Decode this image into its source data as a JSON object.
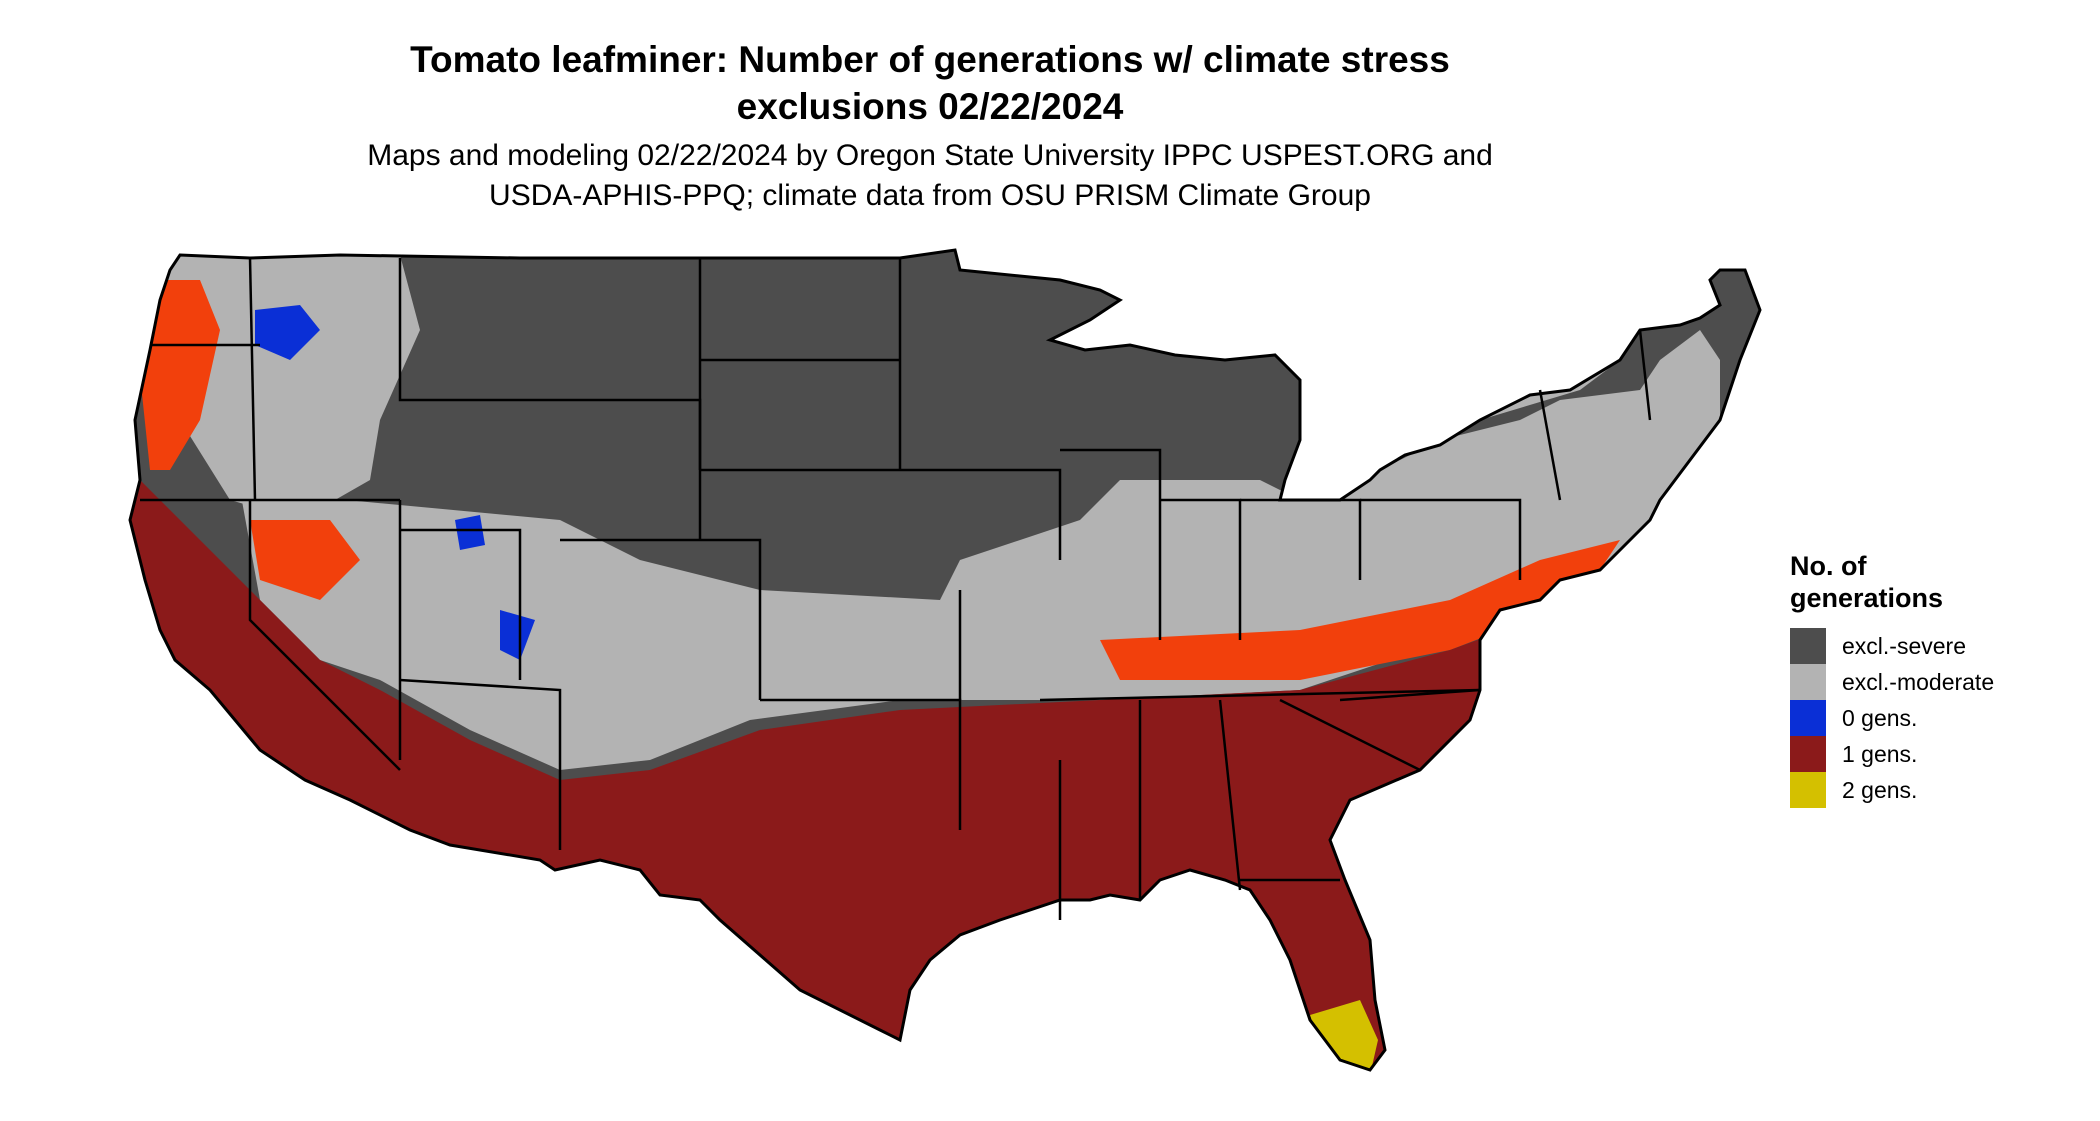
{
  "title": {
    "line1": "Tomato leafminer: Number of generations w/ climate stress",
    "line2": "exclusions 02/22/2024"
  },
  "subtitle": {
    "line1": "Maps and modeling 02/22/2024 by Oregon State University IPPC USPEST.ORG and",
    "line2": "USDA-APHIS-PPQ; climate data from OSU PRISM Climate Group"
  },
  "legend": {
    "title_line1": "No. of",
    "title_line2": "generations",
    "items": [
      {
        "label": "excl.-severe",
        "color": "#4d4d4d"
      },
      {
        "label": "excl.-moderate",
        "color": "#b3b3b3"
      },
      {
        "label": "0 gens.",
        "color": "#0a2fd6"
      },
      {
        "label": "1 gens.",
        "color": "#8b1a1a"
      },
      {
        "label": "2 gens.",
        "color": "#d4c000"
      }
    ]
  },
  "colors": {
    "transition_orange": "#f2400c",
    "state_border": "#000000",
    "background": "#ffffff"
  }
}
